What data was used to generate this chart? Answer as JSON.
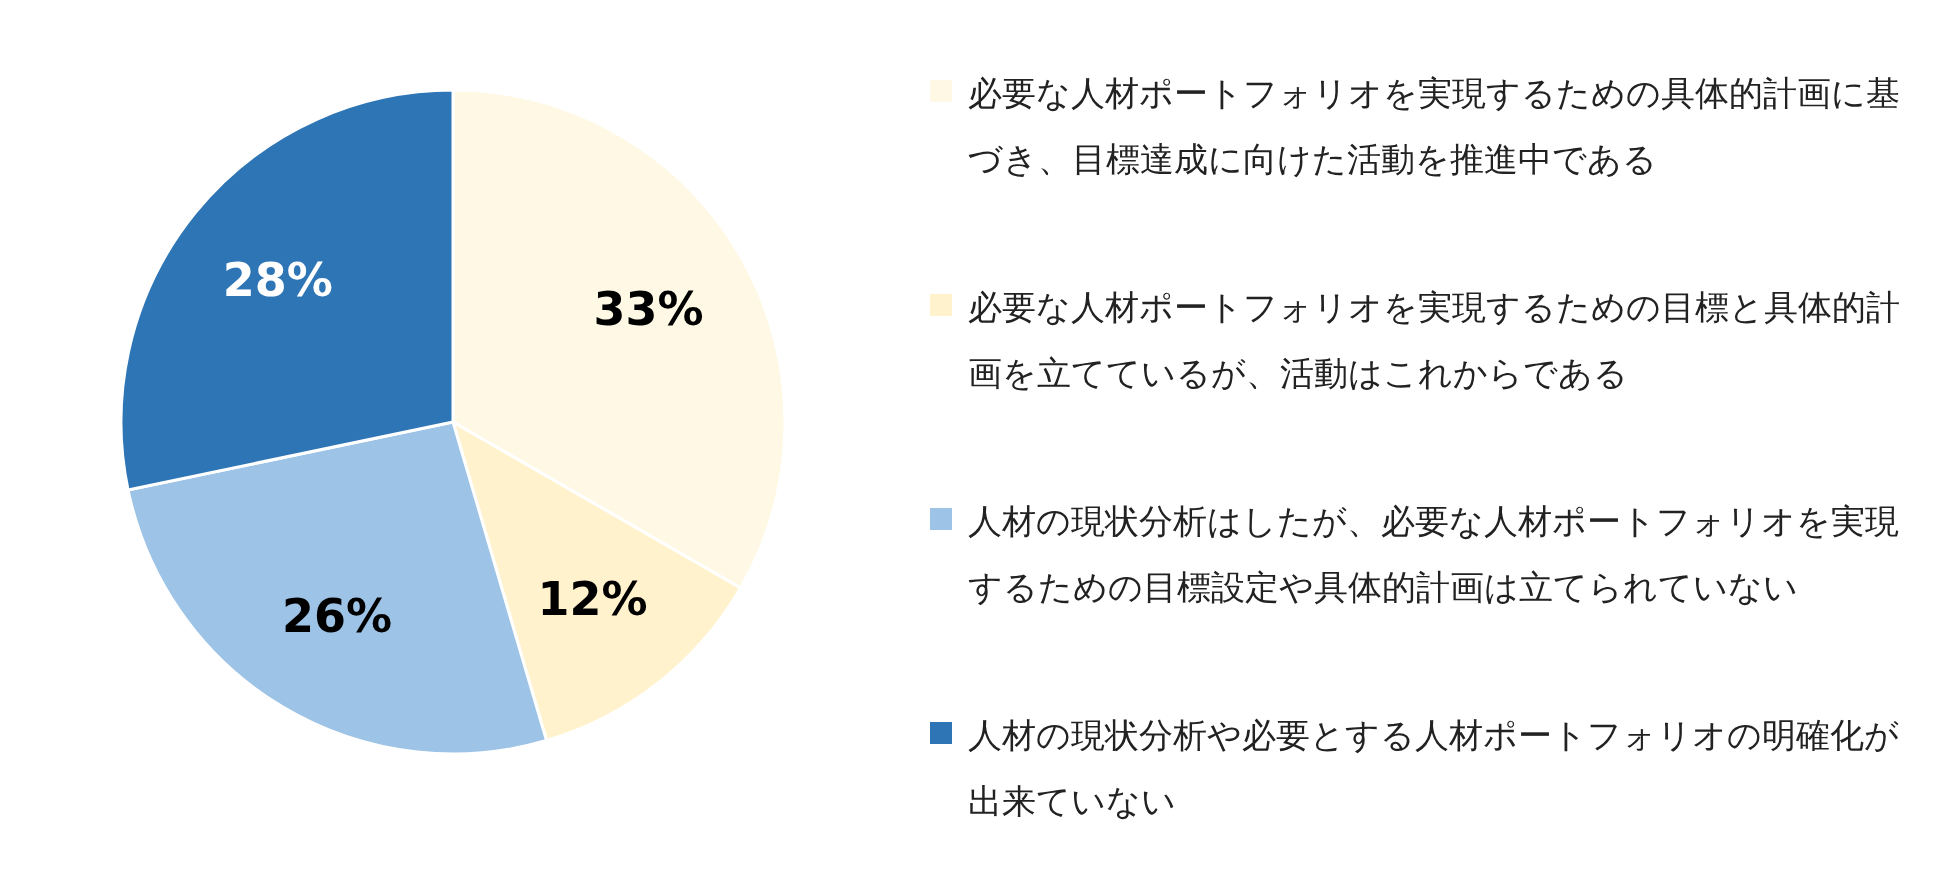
{
  "chart_data": {
    "type": "pie",
    "categories": [
      "必要な人材ポートフォリオを実現するための具体的計画に基づき、目標達成に向けた活動を推進中である",
      "必要な人材ポートフォリオを実現するための目標と具体的計画を立てているが、活動はこれからである",
      "人材の現状分析はしたが、必要な人材ポートフォリオを実現するための目標設定や具体的計画は立てられていない",
      "人材の現状分析や必要とする人材ポートフォリオの明確化が出来ていない"
    ],
    "values": [
      33,
      12,
      26,
      28
    ],
    "colors": [
      "#fef8e4",
      "#fff2cc",
      "#9dc3e6",
      "#2e75b6"
    ],
    "value_labels": [
      "33%",
      "12%",
      "26%",
      "28%"
    ],
    "legend": "right"
  }
}
